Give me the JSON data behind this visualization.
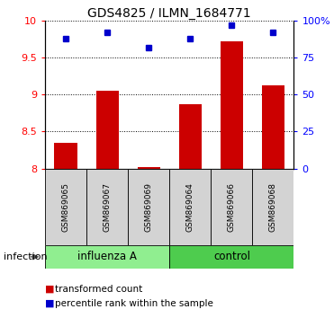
{
  "title": "GDS4825 / ILMN_1684771",
  "samples": [
    "GSM869065",
    "GSM869067",
    "GSM869069",
    "GSM869064",
    "GSM869066",
    "GSM869068"
  ],
  "red_values": [
    8.35,
    9.05,
    8.02,
    8.87,
    9.72,
    9.12
  ],
  "blue_values": [
    88,
    92,
    82,
    88,
    97,
    92
  ],
  "groups": [
    {
      "label": "influenza A",
      "indices": [
        0,
        1,
        2
      ],
      "color": "#90EE90"
    },
    {
      "label": "control",
      "indices": [
        3,
        4,
        5
      ],
      "color": "#4ECC4E"
    }
  ],
  "group_label": "infection",
  "ylim_left": [
    8.0,
    10.0
  ],
  "ylim_right": [
    0,
    100
  ],
  "yticks_left": [
    8.0,
    8.5,
    9.0,
    9.5,
    10.0
  ],
  "ytick_labels_left": [
    "8",
    "8.5",
    "9",
    "9.5",
    "10"
  ],
  "yticks_right": [
    0,
    25,
    50,
    75,
    100
  ],
  "ytick_labels_right": [
    "0",
    "25",
    "50",
    "75",
    "100%"
  ],
  "bar_color": "#CC0000",
  "dot_color": "#0000CC",
  "bar_width": 0.55,
  "title_fontsize": 10,
  "tick_fontsize": 8,
  "sample_fontsize": 6.5,
  "group_fontsize": 8.5,
  "legend_fontsize": 7.5,
  "infection_fontsize": 8
}
